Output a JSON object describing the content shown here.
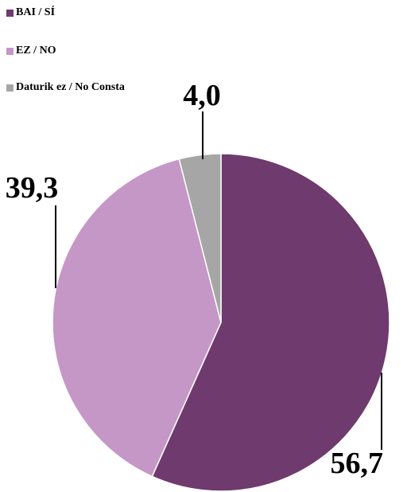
{
  "chart_data": {
    "type": "pie",
    "title": "",
    "slices": [
      {
        "name": "BAI / SÍ",
        "value": 56.7,
        "label": "56,7",
        "color": "#6f3a6e"
      },
      {
        "name": "EZ / NO",
        "value": 39.3,
        "label": "39,3",
        "color": "#c597c6"
      },
      {
        "name": "Daturik ez / No Consta",
        "value": 4.0,
        "label": "4,0",
        "color": "#a6a6a6"
      }
    ],
    "start_angle_deg": 0,
    "direction": "clockwise",
    "legend_position": "top-left"
  }
}
